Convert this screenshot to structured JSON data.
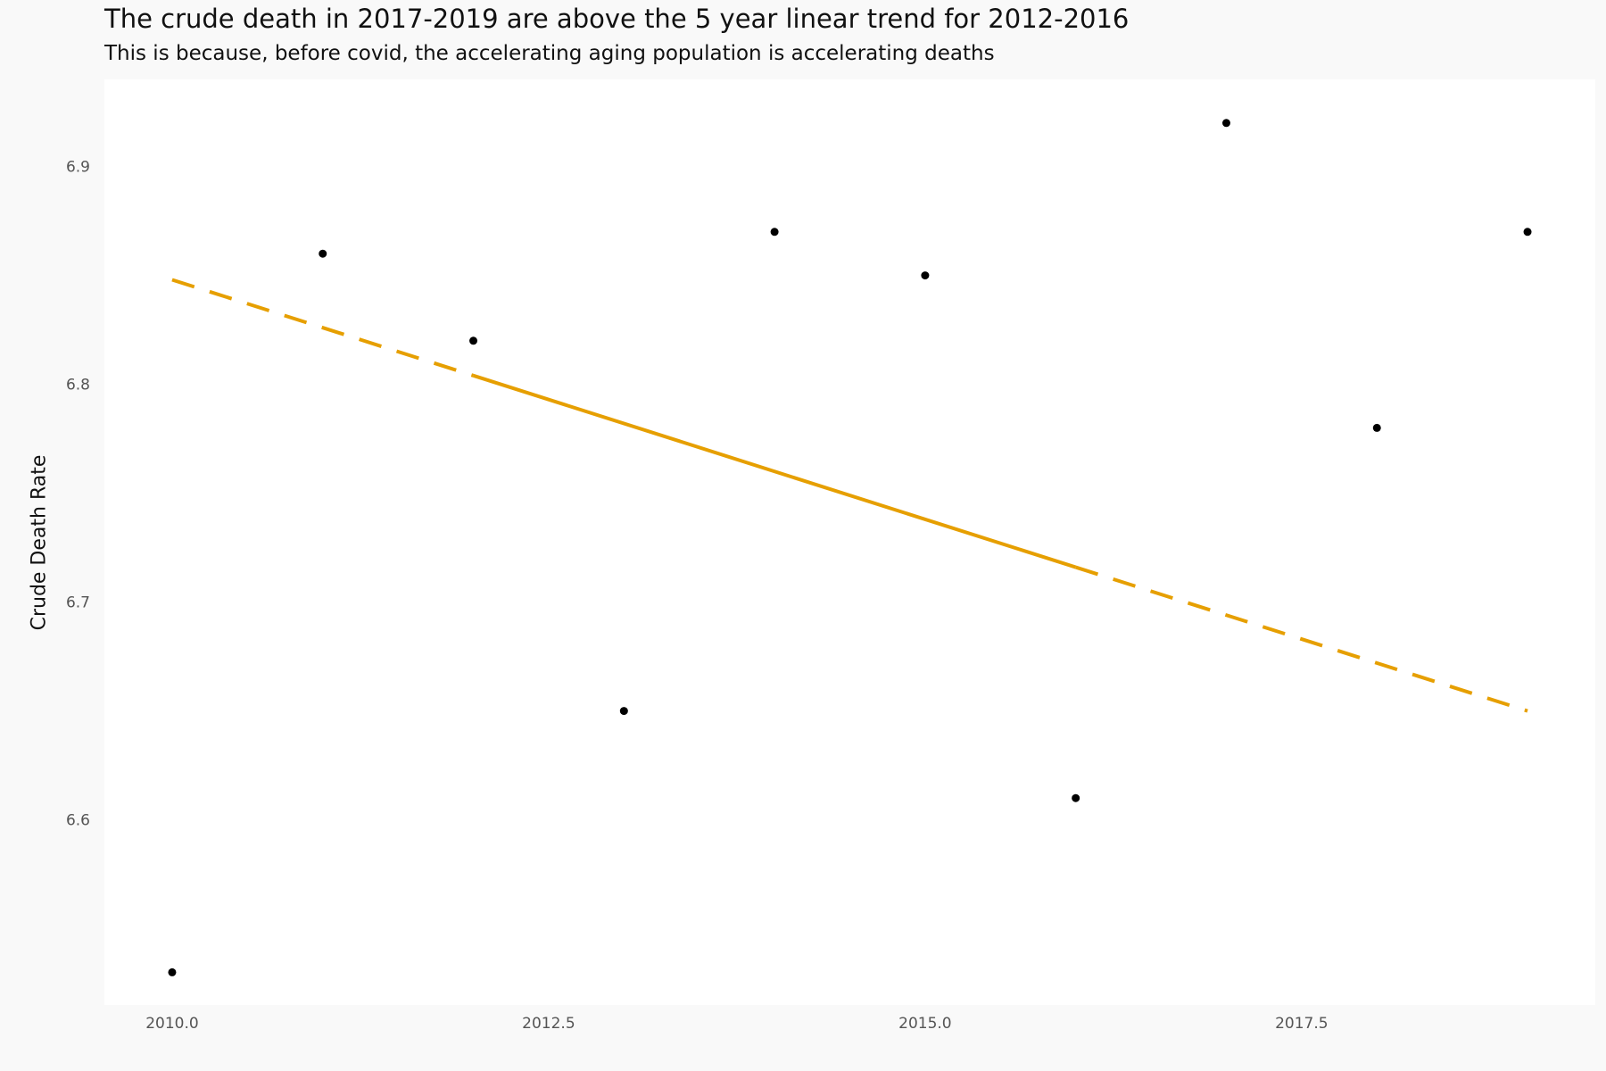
{
  "chart_data": {
    "type": "scatter",
    "title": "The crude death in 2017-2019 are above the 5 year linear trend for 2012-2016",
    "subtitle": "This is because, before covid, the accelerating aging population is accelerating deaths",
    "xlabel": "",
    "ylabel": "Crude Death Rate",
    "xlim": [
      2009.55,
      2019.45
    ],
    "ylim": [
      6.515,
      6.94
    ],
    "xticks": [
      2010.0,
      2012.5,
      2015.0,
      2017.5
    ],
    "xtick_labels": [
      "2010.0",
      "2012.5",
      "2015.0",
      "2017.5"
    ],
    "yticks": [
      6.6,
      6.7,
      6.8,
      6.9
    ],
    "ytick_labels": [
      "6.6",
      "6.7",
      "6.8",
      "6.9"
    ],
    "grid": false,
    "series": [
      {
        "name": "Crude death rate",
        "x": [
          2010,
          2011,
          2012,
          2013,
          2014,
          2015,
          2016,
          2017,
          2018,
          2019
        ],
        "y": [
          6.53,
          6.86,
          6.82,
          6.65,
          6.87,
          6.85,
          6.61,
          6.92,
          6.78,
          6.87
        ],
        "color": "#000000"
      }
    ],
    "trend": {
      "name": "5 year linear trend 2012-2016",
      "fit_range": [
        2012,
        2016
      ],
      "x_range": [
        2010,
        2019
      ],
      "start_value": 6.848,
      "end_value": 6.65,
      "color": "#E69F00",
      "dash_outside_fit": true
    }
  }
}
